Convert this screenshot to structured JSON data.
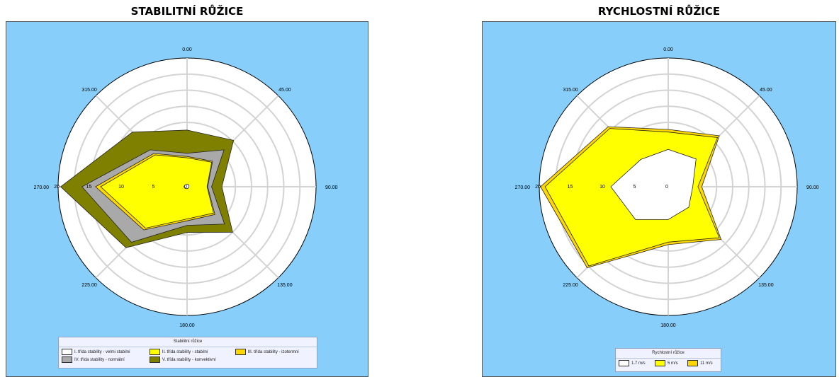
{
  "charts": {
    "left": {
      "title": "STABILITNÍ RŮŽICE",
      "legend_title": "Stabilitní růžice"
    },
    "right": {
      "title": "RYCHLOSTNÍ RŮŽICE",
      "legend_title": "Rychlostní růžice"
    }
  },
  "chart_data": [
    {
      "type": "radar-area",
      "title": "STABILITNÍ RŮŽICE",
      "legend_title": "Stabilitní růžice",
      "legend_position": "bottom",
      "directions": [
        0,
        45,
        90,
        135,
        180,
        225,
        270,
        315
      ],
      "direction_labels": [
        "0.00",
        "45.00",
        "90.00",
        "135.00",
        "180.00",
        "225.00",
        "270.00",
        "315.00"
      ],
      "radial_ticks": [
        "0",
        "5",
        "10",
        "15",
        "20"
      ],
      "rmax": 20,
      "radial_grid_rings": 8,
      "series_draw_order": [
        "V. třída stability - konvektivní",
        "IV. třída stability - normální",
        "III. třída stability - izotermní",
        "II. třída stability - stabilní",
        "I. třída stability - velmi stabilní"
      ],
      "series": [
        {
          "name": "I. třída stability - velmi stabilní",
          "color": "#ffffff",
          "values": [
            0.4,
            0.4,
            0.3,
            0.3,
            0.3,
            0.4,
            0.5,
            0.4
          ]
        },
        {
          "name": "II. třída stability - stabilní",
          "color": "#ffff00",
          "values": [
            4.5,
            5.4,
            3.1,
            5.8,
            5.0,
            9.1,
            13.4,
            7.0
          ]
        },
        {
          "name": "III. třída stability - izotermní",
          "color": "#ffd700",
          "values": [
            4.7,
            5.6,
            3.2,
            6.1,
            5.3,
            9.5,
            14.2,
            7.3
          ]
        },
        {
          "name": "IV. třída stability - normální",
          "color": "#a9a9a9",
          "values": [
            5.2,
            8.1,
            3.8,
            8.2,
            6.0,
            12.2,
            16.3,
            8.1
          ]
        },
        {
          "name": "V. třída stability - konvektivní",
          "color": "#808000",
          "values": [
            8.8,
            10.2,
            5.4,
            10.0,
            7.1,
            13.4,
            19.6,
            12.0
          ]
        }
      ]
    },
    {
      "type": "radar-area",
      "title": "RYCHLOSTNÍ RŮŽICE",
      "legend_title": "Rychlostní růžice",
      "legend_position": "bottom",
      "directions": [
        0,
        45,
        90,
        135,
        180,
        225,
        270,
        315
      ],
      "direction_labels": [
        "0.00",
        "45.00",
        "90.00",
        "135.00",
        "180.00",
        "225.00",
        "270.00",
        "315.00"
      ],
      "radial_ticks": [
        "0",
        "5",
        "10",
        "15",
        "20"
      ],
      "rmax": 20,
      "radial_grid_rings": 8,
      "series_draw_order": [
        "11 m/s",
        "5 m/s",
        "1.7 m/s"
      ],
      "series": [
        {
          "name": "1.7 m/s",
          "color": "#ffffff",
          "values": [
            5.8,
            6.1,
            3.8,
            4.5,
            5.1,
            7.2,
            8.9,
            6.0
          ]
        },
        {
          "name": "5 m/s",
          "color": "#ffff00",
          "values": [
            8.5,
            10.8,
            4.6,
            11.2,
            8.6,
            17.4,
            19.1,
            12.8
          ]
        },
        {
          "name": "11 m/s",
          "color": "#ffd700",
          "values": [
            8.9,
            11.2,
            5.2,
            11.6,
            9.0,
            17.8,
            19.8,
            13.2
          ]
        }
      ]
    }
  ]
}
